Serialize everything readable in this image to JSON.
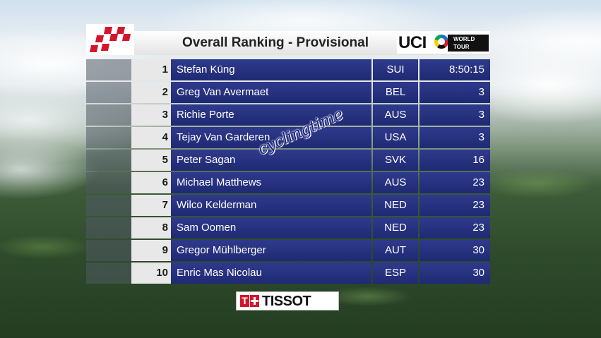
{
  "header": {
    "title": "Overall Ranking - Provisional",
    "uci_logo_text": "UCI",
    "world_tour_line1": "WORLD",
    "world_tour_line2": "TOUR"
  },
  "ranking": [
    {
      "rank": "1",
      "name": "Stefan Küng",
      "nation": "SUI",
      "time": "8:50:15"
    },
    {
      "rank": "2",
      "name": "Greg Van Avermaet",
      "nation": "BEL",
      "time": "3"
    },
    {
      "rank": "3",
      "name": "Richie Porte",
      "nation": "AUS",
      "time": "3"
    },
    {
      "rank": "4",
      "name": "Tejay Van Garderen",
      "nation": "USA",
      "time": "3"
    },
    {
      "rank": "5",
      "name": "Peter Sagan",
      "nation": "SVK",
      "time": "16"
    },
    {
      "rank": "6",
      "name": "Michael Matthews",
      "nation": "AUS",
      "time": "23"
    },
    {
      "rank": "7",
      "name": "Wilco Kelderman",
      "nation": "NED",
      "time": "23"
    },
    {
      "rank": "8",
      "name": "Sam Oomen",
      "nation": "NED",
      "time": "23"
    },
    {
      "rank": "9",
      "name": "Gregor Mühlberger",
      "nation": "AUT",
      "time": "30"
    },
    {
      "rank": "10",
      "name": "Enric Mas Nicolau",
      "nation": "ESP",
      "time": "30"
    }
  ],
  "watermark": "cyclingtime",
  "sponsor": {
    "t_letter": "T",
    "word": "TISSOT"
  },
  "colors": {
    "name_panel": "#2a3584",
    "rank_panel": "#e8e8e8",
    "brand_red": "#d4162d"
  }
}
